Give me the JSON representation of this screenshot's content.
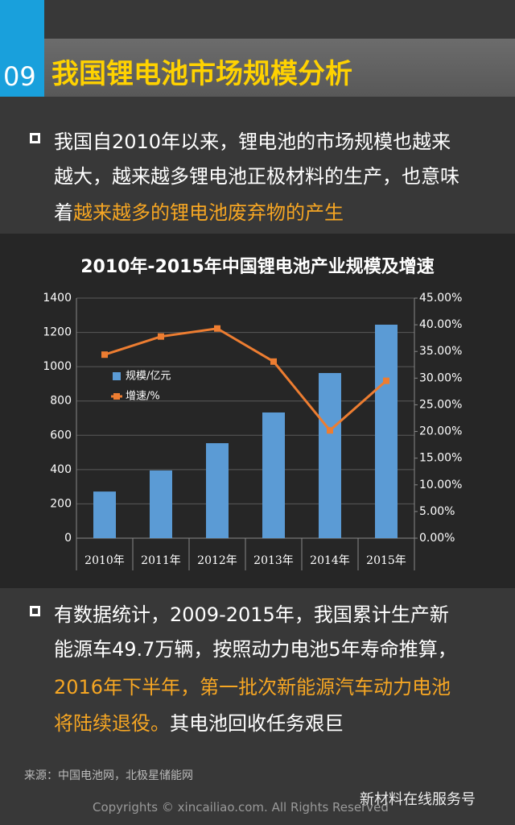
{
  "header": {
    "number": "09",
    "title": "我国锂电池市场规模分析"
  },
  "bullets": [
    {
      "lines": [
        [
          {
            "text": "我国自2010年以来，锂电池的市场规模也越来",
            "highlight": false
          }
        ],
        [
          {
            "text": "越大，越来越多锂电池正极材料的生产，也意味",
            "highlight": false
          }
        ],
        [
          {
            "text": "着",
            "highlight": false
          },
          {
            "text": "越来越多的锂电池废弃物的产生",
            "highlight": true
          }
        ]
      ]
    },
    {
      "lines": [
        [
          {
            "text": "有数据统计，2009-2015年，我国累计生产新",
            "highlight": false
          }
        ],
        [
          {
            "text": "能源车49.7万辆，按照动力电池5年寿命推算，",
            "highlight": false
          }
        ],
        [
          {
            "text": "2016年下半年，第一批次新能源汽车动力电池",
            "highlight": true
          }
        ],
        [
          {
            "text": "将陆续退役。",
            "highlight": true
          },
          {
            "text": "其电池回收任务艰巨",
            "highlight": false
          }
        ]
      ]
    }
  ],
  "chart_data": {
    "type": "bar_line",
    "title": "2010年-2015年中国锂电池产业规模及增速",
    "categories": [
      "2010年",
      "2011年",
      "2012年",
      "2013年",
      "2014年",
      "2015年"
    ],
    "series": [
      {
        "name": "规模/亿元",
        "type": "bar",
        "color": "#5b9bd5",
        "values": [
          272,
          395,
          554,
          733,
          963,
          1245
        ]
      },
      {
        "name": "增速/%",
        "type": "line",
        "axis": "y2",
        "color": "#ed7d31",
        "values": [
          34.4,
          37.8,
          39.3,
          33.1,
          20.2,
          29.5
        ]
      }
    ],
    "ylim": [
      0,
      1400
    ],
    "yticks": [
      0,
      200,
      400,
      600,
      800,
      1000,
      1200,
      1400
    ],
    "y2lim": [
      0,
      45
    ],
    "y2ticks": [
      {
        "value": 0,
        "label": "0.00%"
      },
      {
        "value": 5,
        "label": "5.00%"
      },
      {
        "value": 10,
        "label": "10.00%"
      },
      {
        "value": 15,
        "label": "15.00%"
      },
      {
        "value": 20,
        "label": "20.00%"
      },
      {
        "value": 25,
        "label": "25.00%"
      },
      {
        "value": 30,
        "label": "30.00%"
      },
      {
        "value": 35,
        "label": "35.00%"
      },
      {
        "value": 40,
        "label": "40.00%"
      },
      {
        "value": 45,
        "label": "45.00%"
      }
    ],
    "grid": true
  },
  "source": "来源：中国电池网，北极星储能网",
  "footer": {
    "watermark": "新材料在线服务号",
    "copyright": "Copyrights © xincailiao.com. All Rights Reserved"
  }
}
